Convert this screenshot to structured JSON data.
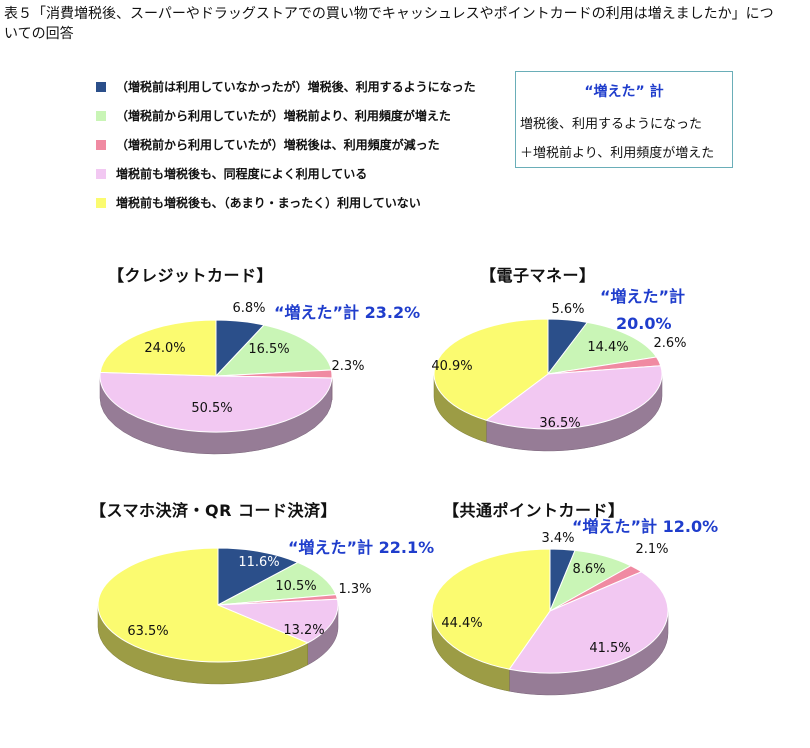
{
  "title": "表５「消費増税後、スーパーやドラッグストアでの買い物でキャッシュレスやポイントカードの利用は増えましたか」についての回答",
  "legend": [
    {
      "label": "（増税前は利用していなかったが）増税後、利用するようになった",
      "color": "#2b4f8a"
    },
    {
      "label": "（増税前から利用していたが）増税前より、利用頻度が増えた",
      "color": "#c9f5b6"
    },
    {
      "label": "（増税前から利用していたが）増税後は、利用頻度が減った",
      "color": "#f08aa2"
    },
    {
      "label": "増税前も増税後も、同程度によく利用している",
      "color": "#f2c8f2"
    },
    {
      "label": "増税前も増税後も、（あまり・まったく）利用していない",
      "color": "#fbfb70"
    }
  ],
  "summary_box": {
    "title": "“増えた” 計",
    "line1": "増税後、利用するようになった",
    "line2": "＋増税前より、利用頻度が増えた"
  },
  "chart_data": [
    {
      "type": "pie",
      "title": "【クレジットカード】",
      "increase_label": "“増えた”計 23.2%",
      "values": [
        6.8,
        16.5,
        2.3,
        50.5,
        24.0
      ],
      "labels": [
        "6.8%",
        "16.5%",
        "2.3%",
        "50.5%",
        "24.0%"
      ]
    },
    {
      "type": "pie",
      "title": "【電子マネー】",
      "increase_label_line1": "“増えた”計",
      "increase_label_line2": "20.0%",
      "values": [
        5.6,
        14.4,
        2.6,
        36.5,
        40.9
      ],
      "labels": [
        "5.6%",
        "14.4%",
        "2.6%",
        "36.5%",
        "40.9%"
      ]
    },
    {
      "type": "pie",
      "title": "【スマホ決済・QR コード決済】",
      "increase_label": "“増えた”計 22.1%",
      "values": [
        11.6,
        10.5,
        1.3,
        13.2,
        63.5
      ],
      "labels": [
        "11.6%",
        "10.5%",
        "1.3%",
        "13.2%",
        "63.5%"
      ]
    },
    {
      "type": "pie",
      "title": "【共通ポイントカード】",
      "increase_label": "“増えた”計 12.0%",
      "values": [
        3.4,
        8.6,
        2.1,
        41.5,
        44.4
      ],
      "labels": [
        "3.4%",
        "8.6%",
        "2.1%",
        "41.5%",
        "44.4%"
      ]
    }
  ]
}
